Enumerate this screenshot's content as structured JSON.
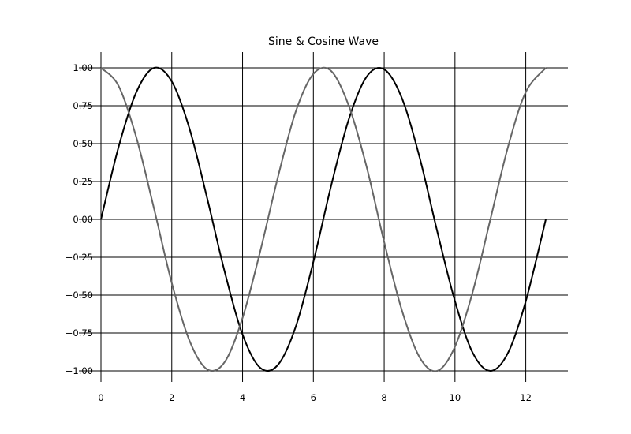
{
  "chart_data": {
    "type": "line",
    "title": "Sine & Cosine Wave",
    "xlabel": "",
    "ylabel": "",
    "xlim": [
      0,
      12.566
    ],
    "ylim": [
      -1.0,
      1.0
    ],
    "x_ticks": [
      0,
      2,
      4,
      6,
      8,
      10,
      12
    ],
    "x_tick_labels": [
      "0",
      "2",
      "4",
      "6",
      "8",
      "10",
      "12"
    ],
    "y_ticks": [
      1.0,
      0.75,
      0.5,
      0.25,
      0.0,
      -0.25,
      -0.5,
      -0.75,
      -1.0
    ],
    "y_tick_labels": [
      "1.00",
      "0.75",
      "0.50",
      "0.25",
      "0.00",
      "−0.25",
      "−0.50",
      "−0.75",
      "−1.00"
    ],
    "grid": true,
    "legend": false,
    "series": [
      {
        "color": "#000000",
        "x": [
          0,
          0.5,
          1,
          1.5,
          2,
          2.5,
          3,
          3.5,
          4,
          4.5,
          5,
          5.5,
          6,
          6.5,
          7,
          7.5,
          8,
          8.5,
          9,
          9.5,
          10,
          10.5,
          11,
          11.5,
          12,
          12.566
        ],
        "y": [
          0.0,
          0.48,
          0.84,
          1.0,
          0.91,
          0.6,
          0.14,
          -0.35,
          -0.76,
          -0.98,
          -0.96,
          -0.71,
          -0.28,
          0.22,
          0.66,
          0.94,
          0.99,
          0.8,
          0.41,
          -0.08,
          -0.54,
          -0.88,
          -1.0,
          -0.88,
          -0.54,
          0.0
        ]
      },
      {
        "color": "#666666",
        "x": [
          0,
          0.5,
          1,
          1.5,
          2,
          2.5,
          3,
          3.5,
          4,
          4.5,
          5,
          5.5,
          6,
          6.5,
          7,
          7.5,
          8,
          8.5,
          9,
          9.5,
          10,
          10.5,
          11,
          11.5,
          12,
          12.566
        ],
        "y": [
          1.0,
          0.88,
          0.54,
          0.07,
          -0.42,
          -0.8,
          -0.99,
          -0.94,
          -0.65,
          -0.21,
          0.28,
          0.71,
          0.96,
          0.98,
          0.75,
          0.35,
          -0.15,
          -0.6,
          -0.91,
          -1.0,
          -0.84,
          -0.48,
          0.0,
          0.48,
          0.84,
          1.0
        ]
      }
    ]
  }
}
